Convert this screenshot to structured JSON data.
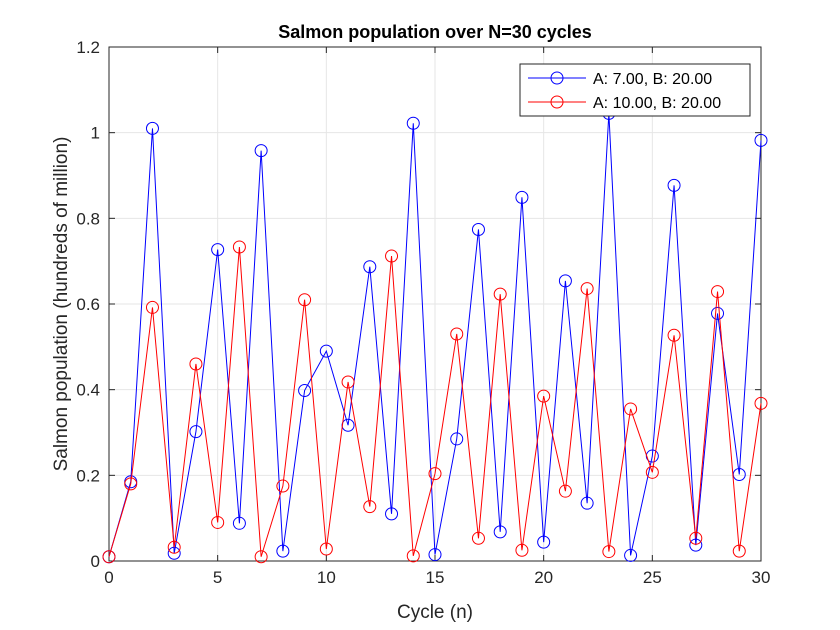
{
  "chart_data": {
    "type": "line",
    "title": "Salmon population over N=30 cycles",
    "xlabel": "Cycle (n)",
    "ylabel": "Salmon population (hundreds of million)",
    "xlim": [
      0,
      30
    ],
    "ylim": [
      0,
      1.2
    ],
    "xticks": [
      "0",
      "5",
      "10",
      "15",
      "20",
      "25",
      "30"
    ],
    "yticks": [
      "0",
      "0.2",
      "0.4",
      "0.6",
      "0.8",
      "1",
      "1.2"
    ],
    "grid": true,
    "legend_position": "top-right",
    "x": [
      0,
      1,
      2,
      3,
      4,
      5,
      6,
      7,
      8,
      9,
      10,
      11,
      12,
      13,
      14,
      15,
      16,
      17,
      18,
      19,
      20,
      21,
      22,
      23,
      24,
      25,
      26,
      27,
      28,
      29,
      30
    ],
    "series": [
      {
        "name": "A: 7.00, B: 20.00",
        "color": "#0000ff",
        "marker": "circle",
        "values": [
          0.01,
          0.185,
          1.01,
          0.018,
          0.302,
          0.727,
          0.088,
          0.958,
          0.023,
          0.398,
          0.49,
          0.317,
          0.687,
          0.11,
          1.022,
          0.015,
          0.285,
          0.774,
          0.068,
          0.849,
          0.044,
          0.654,
          0.135,
          1.045,
          0.013,
          0.245,
          0.877,
          0.037,
          0.578,
          0.202,
          0.982
        ]
      },
      {
        "name": "A: 10.00, B: 20.00",
        "color": "#ff0000",
        "marker": "circle",
        "values": [
          0.01,
          0.18,
          0.592,
          0.032,
          0.46,
          0.09,
          0.733,
          0.01,
          0.175,
          0.61,
          0.028,
          0.418,
          0.127,
          0.712,
          0.012,
          0.204,
          0.53,
          0.053,
          0.623,
          0.025,
          0.385,
          0.163,
          0.636,
          0.022,
          0.355,
          0.207,
          0.527,
          0.053,
          0.629,
          0.023,
          0.368
        ]
      }
    ]
  }
}
